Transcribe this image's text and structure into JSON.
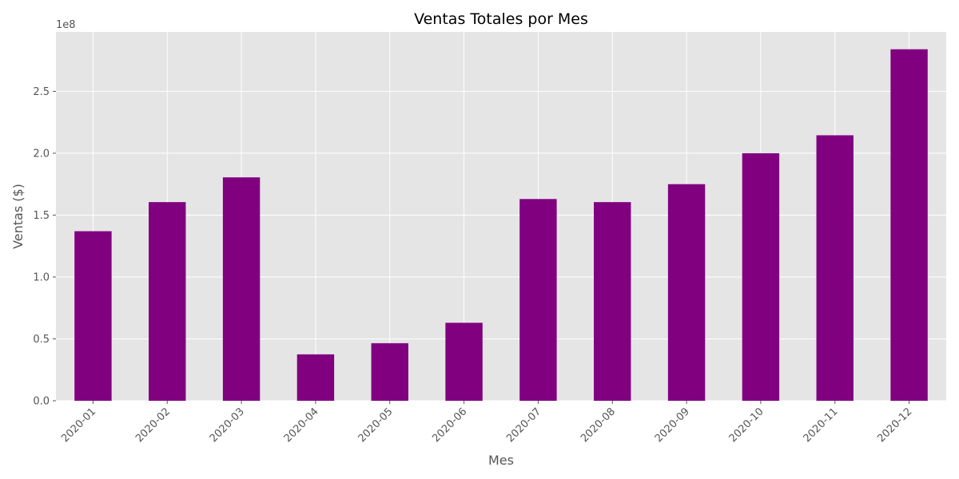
{
  "chart_data": {
    "type": "bar",
    "title": "Ventas Totales por Mes",
    "xlabel": "Mes",
    "ylabel": "Ventas ($)",
    "y_offset_label": "1e8",
    "categories": [
      "2020-01",
      "2020-02",
      "2020-03",
      "2020-04",
      "2020-05",
      "2020-06",
      "2020-07",
      "2020-08",
      "2020-09",
      "2020-10",
      "2020-11",
      "2020-12"
    ],
    "values": [
      137000000,
      160500000,
      180500000,
      37500000,
      46500000,
      63000000,
      163000000,
      160500000,
      175000000,
      200000000,
      214500000,
      284000000
    ],
    "y_ticks": [
      0,
      50000000,
      100000000,
      150000000,
      200000000,
      250000000
    ],
    "y_tick_labels": [
      "0.0",
      "0.5",
      "1.0",
      "1.5",
      "2.0",
      "2.5"
    ],
    "ylim": [
      0,
      298000000
    ],
    "grid": true,
    "colors": {
      "bar": "#800080",
      "plot_background": "#e5e5e5",
      "grid": "#ffffff"
    }
  }
}
